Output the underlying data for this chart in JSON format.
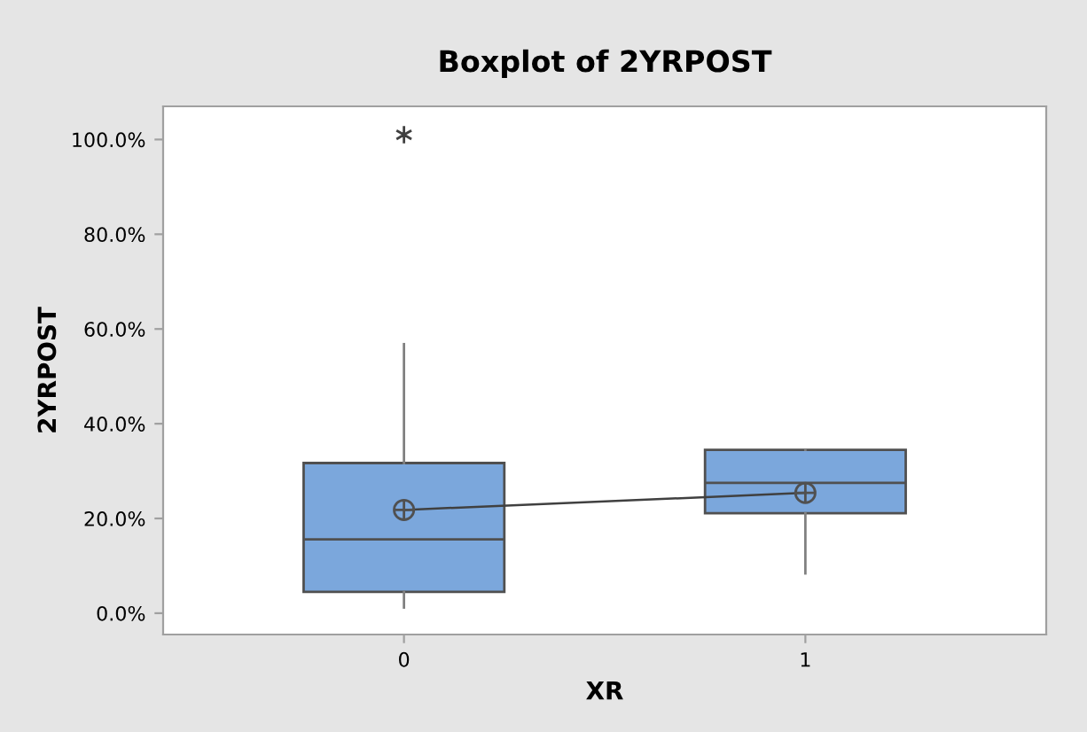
{
  "chart_data": {
    "type": "box",
    "title": "Boxplot of 2YRPOST",
    "xlabel": "XR",
    "ylabel": "2YRPOST",
    "categories": [
      "0",
      "1"
    ],
    "boxes": [
      {
        "low": 1.2,
        "q1": 4.5,
        "median": 15.6,
        "q3": 31.7,
        "high": 56.8,
        "mean": 21.8,
        "outliers": [
          101.0
        ]
      },
      {
        "low": 8.4,
        "q1": 21.1,
        "median": 27.5,
        "q3": 34.5,
        "high": 34.5,
        "mean": 25.4
      }
    ],
    "color": "#7ba7dc",
    "series": [
      {
        "type": "line",
        "values": [
          21.8,
          25.4
        ],
        "color": "#404040"
      }
    ],
    "ylim": [
      -4.5,
      107
    ],
    "yticks": [
      {
        "value": 0,
        "label": "0.0%"
      },
      {
        "value": 20,
        "label": "20.0%"
      },
      {
        "value": 40,
        "label": "40.0%"
      },
      {
        "value": 60,
        "label": "60.0%"
      },
      {
        "value": 80,
        "label": "80.0%"
      },
      {
        "value": 100,
        "label": "100.0%"
      }
    ],
    "grid": false,
    "legend": false
  }
}
